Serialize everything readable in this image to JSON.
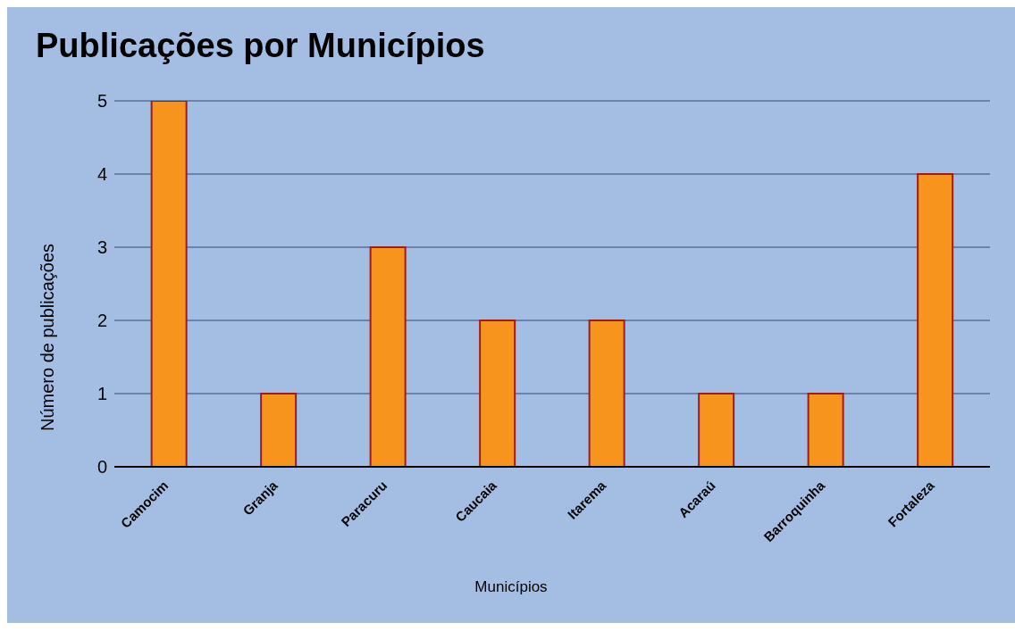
{
  "chart_data": {
    "type": "bar",
    "title": "Publicações por Municípios",
    "xlabel": "Municípios",
    "ylabel": "Número de publicações",
    "categories": [
      "Camocim",
      "Granja",
      "Paracuru",
      "Caucaia",
      "Itarema",
      "Acaraú",
      "Barroquinha",
      "Fortaleza"
    ],
    "values": [
      5,
      1,
      3,
      2,
      2,
      1,
      1,
      4
    ],
    "color": "#f7941d",
    "ylim": [
      0,
      5
    ],
    "yticks": [
      0,
      1,
      2,
      3,
      4,
      5
    ],
    "grid": "y"
  }
}
